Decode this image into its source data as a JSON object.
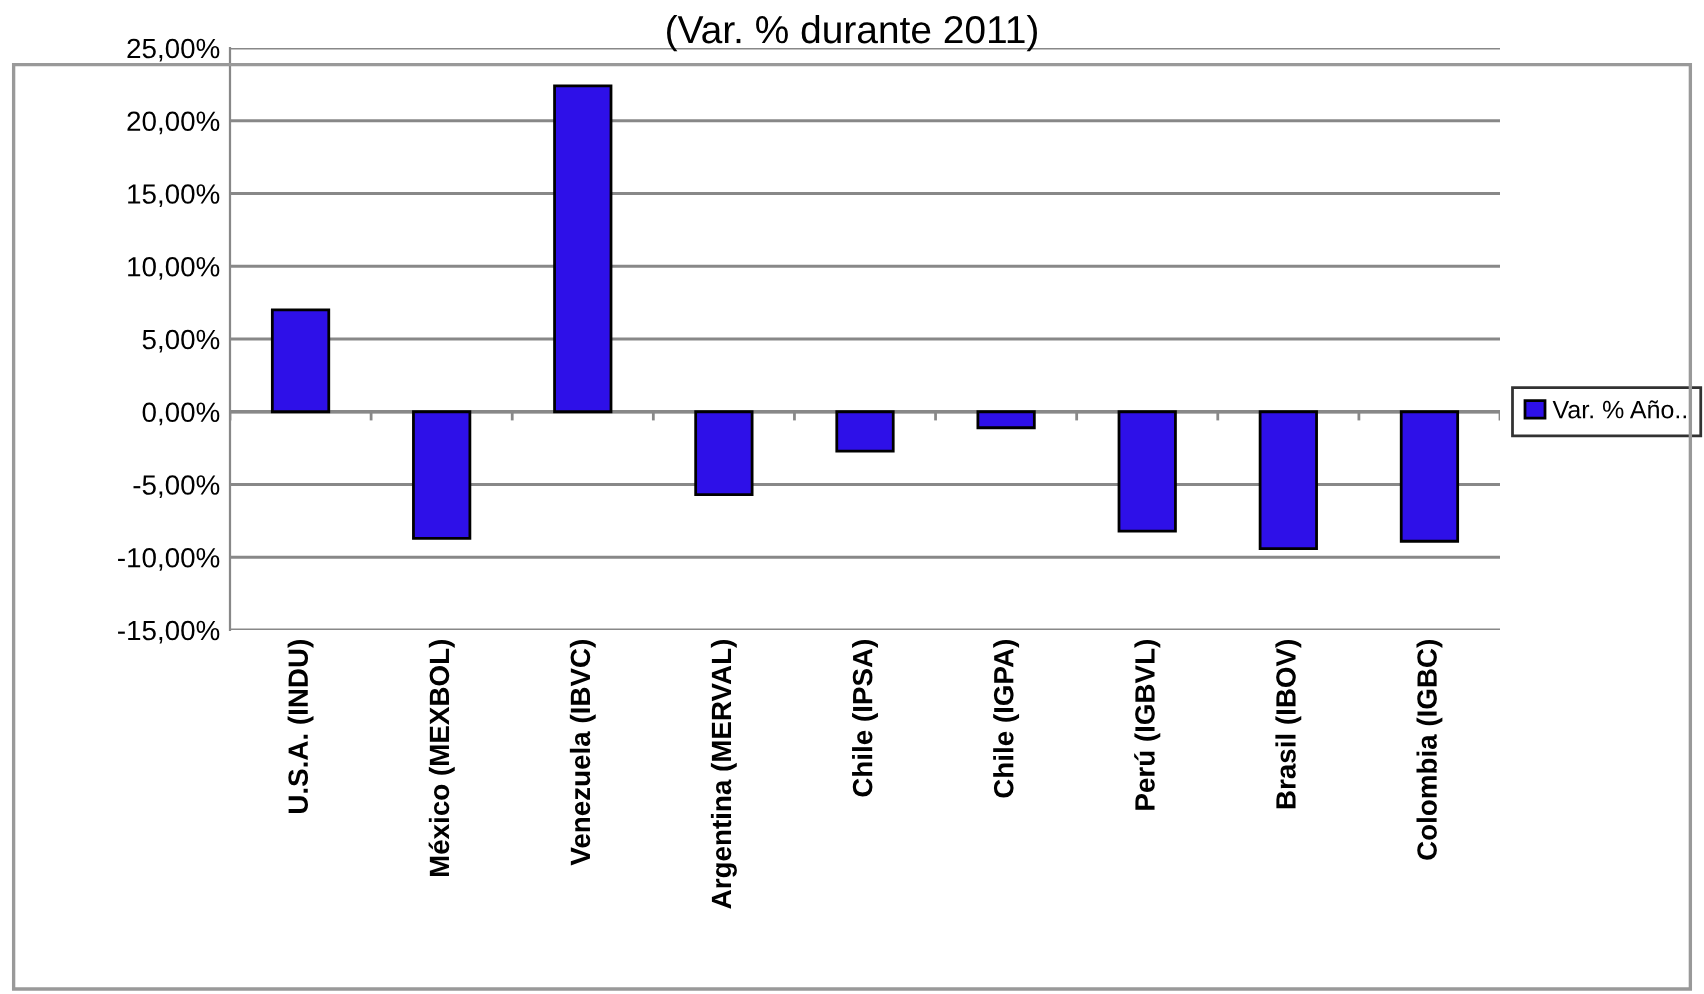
{
  "chart_data": {
    "type": "bar",
    "title": "(Var. % durante 2011)",
    "categories": [
      "U.S.A. (INDU)",
      "México (MEXBOL)",
      "Venezuela (IBVC)",
      "Argentina (MERVAL)",
      "Chile (IPSA)",
      "Chile (IGPA)",
      "Perú (IGBVL)",
      "Brasil (IBOV)",
      "Colombia (IGBC)"
    ],
    "series": [
      {
        "name": "Var. % Año..",
        "color": "#2e10e8",
        "values": [
          7.0,
          -8.7,
          22.4,
          -5.7,
          -2.7,
          -1.1,
          -8.2,
          -9.4,
          -8.9
        ]
      }
    ],
    "ylim": [
      -15,
      25
    ],
    "yticks": [
      {
        "value": -15,
        "label": "-15,00%"
      },
      {
        "value": -10,
        "label": "-10,00%"
      },
      {
        "value": -5,
        "label": "-5,00%"
      },
      {
        "value": 0,
        "label": "0,00%"
      },
      {
        "value": 5,
        "label": "5,00%"
      },
      {
        "value": 10,
        "label": "10,00%"
      },
      {
        "value": 15,
        "label": "15,00%"
      },
      {
        "value": 20,
        "label": "20,00%"
      },
      {
        "value": 25,
        "label": "25,00%"
      }
    ],
    "grid": "y",
    "legend": "right"
  }
}
